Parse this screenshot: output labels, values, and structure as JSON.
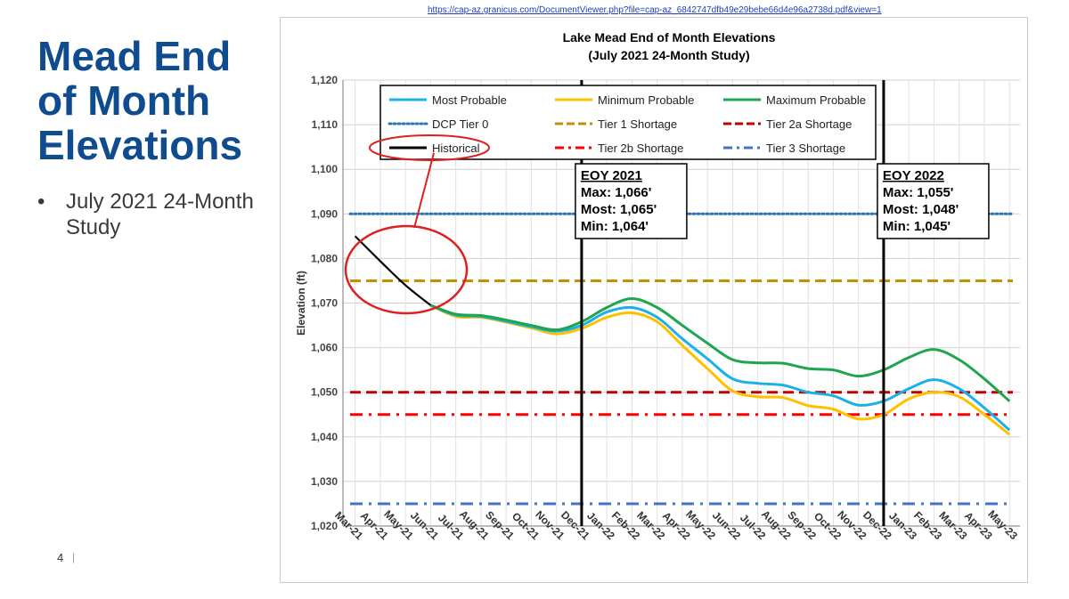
{
  "slide": {
    "title": "Mead End\nof Month\nElevations",
    "bullets": [
      "July 2021 24-Month Study"
    ],
    "bullet_symbol": "•",
    "page_number": "4",
    "page_separator": "|"
  },
  "source_url": "https://cap-az.granicus.com/DocumentViewer.php?file=cap-az_6842747dfb49e29bebe66d4e96a2738d.pdf&view=1",
  "chart_data": {
    "type": "line",
    "title": "Lake Mead End of Month Elevations",
    "subtitle": "(July 2021 24-Month Study)",
    "xlabel": "",
    "ylabel": "Elevation (ft)",
    "ylim": [
      1020,
      1120
    ],
    "y_ticks": [
      "1,020",
      "1,030",
      "1,040",
      "1,050",
      "1,060",
      "1,070",
      "1,080",
      "1,090",
      "1,100",
      "1,110",
      "1,120"
    ],
    "grid": true,
    "legend_position": "top",
    "categories": [
      "Mar-21",
      "Apr-21",
      "May-21",
      "Jun-21",
      "Jul-21",
      "Aug-21",
      "Sep-21",
      "Oct-21",
      "Nov-21",
      "Dec-21",
      "Jan-22",
      "Feb-22",
      "Mar-22",
      "Apr-22",
      "May-22",
      "Jun-22",
      "Jul-22",
      "Aug-22",
      "Sep-22",
      "Oct-22",
      "Nov-22",
      "Dec-22",
      "Jan-23",
      "Feb-23",
      "Mar-23",
      "Apr-23",
      "May-23"
    ],
    "series": [
      {
        "name": "Most Probable",
        "color": "#1ab0e8",
        "style": "solid",
        "values": [
          null,
          null,
          null,
          1069.5,
          1067.3,
          1067.0,
          1065.9,
          1064.7,
          1063.7,
          1065.0,
          1068.0,
          1069.0,
          1066.8,
          1062.0,
          1057.5,
          1053.0,
          1052.0,
          1051.6,
          1050.0,
          1049.2,
          1047.1,
          1048.0,
          1050.8,
          1052.8,
          1050.8,
          1046.5,
          1041.5
        ]
      },
      {
        "name": "Minimum Probable",
        "color": "#ffc000",
        "style": "solid",
        "values": [
          null,
          null,
          null,
          1069.5,
          1067.0,
          1066.8,
          1065.7,
          1064.4,
          1063.1,
          1064.3,
          1066.8,
          1067.8,
          1065.8,
          1060.5,
          1055.3,
          1050.3,
          1049.0,
          1048.8,
          1047.0,
          1046.2,
          1044.0,
          1045.0,
          1048.5,
          1050.0,
          1049.0,
          1045.0,
          1040.5
        ]
      },
      {
        "name": "Maximum Probable",
        "color": "#1fa54c",
        "style": "solid",
        "values": [
          null,
          null,
          null,
          1069.5,
          1067.5,
          1067.2,
          1066.2,
          1065.0,
          1064.0,
          1065.8,
          1069.0,
          1071.0,
          1069.0,
          1065.0,
          1061.0,
          1057.3,
          1056.6,
          1056.5,
          1055.3,
          1055.0,
          1053.6,
          1055.0,
          1057.8,
          1059.6,
          1057.3,
          1053.0,
          1048.0
        ]
      },
      {
        "name": "DCP Tier 0",
        "color": "#2e75b6",
        "style": "dotted",
        "values": [
          1090,
          1090,
          1090,
          1090,
          1090,
          1090,
          1090,
          1090,
          1090,
          1090,
          1090,
          1090,
          1090,
          1090,
          1090,
          1090,
          1090,
          1090,
          1090,
          1090,
          1090,
          1090,
          1090,
          1090,
          1090,
          1090,
          1090
        ]
      },
      {
        "name": "Tier 1 Shortage",
        "color": "#bf9000",
        "style": "dashed",
        "values": [
          1075,
          1075,
          1075,
          1075,
          1075,
          1075,
          1075,
          1075,
          1075,
          1075,
          1075,
          1075,
          1075,
          1075,
          1075,
          1075,
          1075,
          1075,
          1075,
          1075,
          1075,
          1075,
          1075,
          1075,
          1075,
          1075,
          1075
        ]
      },
      {
        "name": "Tier 2a Shortage",
        "color": "#c00000",
        "style": "dashed",
        "values": [
          1050,
          1050,
          1050,
          1050,
          1050,
          1050,
          1050,
          1050,
          1050,
          1050,
          1050,
          1050,
          1050,
          1050,
          1050,
          1050,
          1050,
          1050,
          1050,
          1050,
          1050,
          1050,
          1050,
          1050,
          1050,
          1050,
          1050
        ]
      },
      {
        "name": "Historical",
        "color": "#000000",
        "style": "solid",
        "values": [
          1085.0,
          1079.4,
          1074.0,
          1069.5,
          null,
          null,
          null,
          null,
          null,
          null,
          null,
          null,
          null,
          null,
          null,
          null,
          null,
          null,
          null,
          null,
          null,
          null,
          null,
          null,
          null,
          null,
          null
        ]
      },
      {
        "name": "Tier 2b Shortage",
        "color": "#ff0000",
        "style": "dashdot",
        "values": [
          1045,
          1045,
          1045,
          1045,
          1045,
          1045,
          1045,
          1045,
          1045,
          1045,
          1045,
          1045,
          1045,
          1045,
          1045,
          1045,
          1045,
          1045,
          1045,
          1045,
          1045,
          1045,
          1045,
          1045,
          1045,
          1045,
          1045
        ]
      },
      {
        "name": "Tier 3 Shortage",
        "color": "#4472c4",
        "style": "dashdot",
        "values": [
          1025,
          1025,
          1025,
          1025,
          1025,
          1025,
          1025,
          1025,
          1025,
          1025,
          1025,
          1025,
          1025,
          1025,
          1025,
          1025,
          1025,
          1025,
          1025,
          1025,
          1025,
          1025,
          1025,
          1025,
          1025,
          1025,
          1025
        ]
      }
    ],
    "markers": [
      {
        "category": "Dec-21",
        "label_lines": [
          "EOY 2021",
          "Max: 1,066'",
          "Most: 1,065'",
          "Min: 1,064'"
        ]
      },
      {
        "category": "Dec-22",
        "label_lines": [
          "EOY 2022",
          "Max: 1,055'",
          "Most: 1,048'",
          "Min: 1,045'"
        ]
      }
    ],
    "annotation": {
      "highlight": "Historical",
      "color": "#e02020"
    }
  }
}
